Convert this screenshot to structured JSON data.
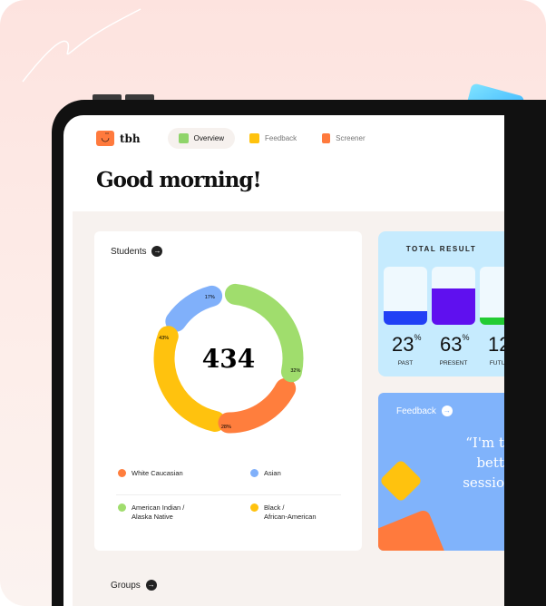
{
  "app": {
    "logo_text": "tbh"
  },
  "nav": {
    "tabs": [
      {
        "label": "Overview",
        "active": true,
        "color": "#8fd46a"
      },
      {
        "label": "Feedback",
        "color": "#ffc20e"
      },
      {
        "label": "Screener",
        "color": "#ff7a3d"
      }
    ]
  },
  "greeting": "Good morning!",
  "students": {
    "title": "Students",
    "total": "434",
    "segments": [
      {
        "label": "American Indian / Alaska Native",
        "pct": "32%",
        "color": "#a0dd6d"
      },
      {
        "label": "White Caucasian",
        "pct": "28%",
        "color": "#ff7e3d"
      },
      {
        "label": "Black / African-American",
        "pct": "43%",
        "color": "#ffc20e"
      },
      {
        "label": "Asian",
        "pct": "17%",
        "color": "#80b0fa"
      }
    ],
    "legend": [
      {
        "label": "White Caucasian",
        "color": "#ff7e3d"
      },
      {
        "label": "Asian",
        "color": "#80b0fa"
      },
      {
        "label": "American Indian /\nAlaska Native",
        "color": "#a0dd6d"
      },
      {
        "label": "Black /\nAfrican-American",
        "color": "#ffc20e"
      }
    ]
  },
  "total_result": {
    "title": "TOTAL RESULT",
    "items": [
      {
        "value": "23",
        "unit": "%",
        "label": "PAST",
        "fill": 0.23,
        "color": "#2140f5"
      },
      {
        "value": "63",
        "unit": "%",
        "label": "PRESENT",
        "fill": 0.63,
        "color": "#5f10ef"
      },
      {
        "value": "12",
        "unit": "%",
        "label": "FUTURE",
        "fill": 0.12,
        "color": "#22cc33"
      }
    ]
  },
  "feedback": {
    "title": "Feedback",
    "quote": "“I'm t\nbett\nsessio"
  },
  "groups": {
    "title": "Groups"
  }
}
